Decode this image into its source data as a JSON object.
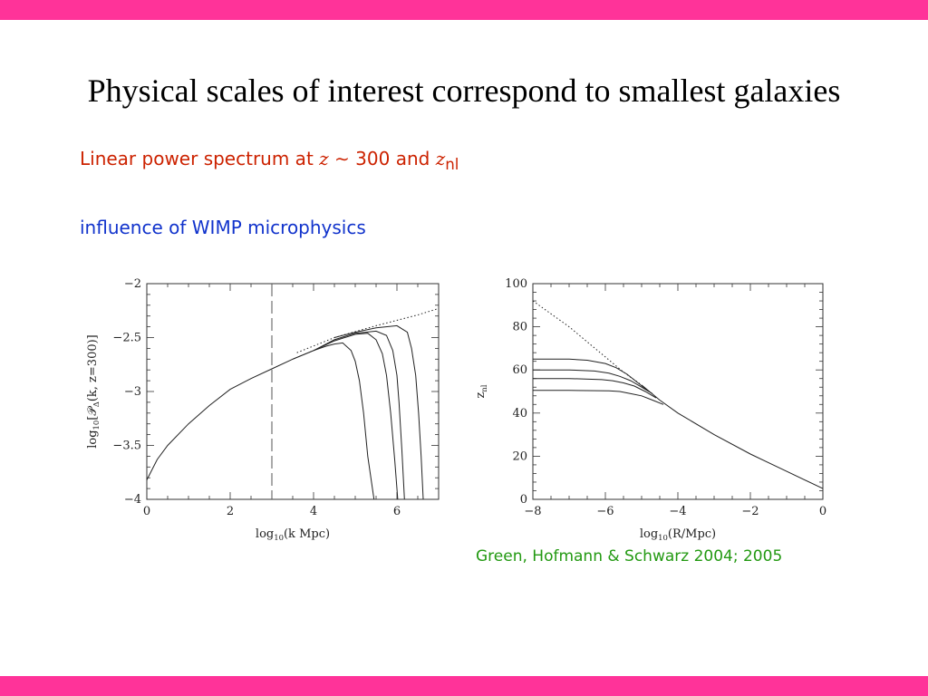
{
  "colors": {
    "accent_bar": "#ff3399",
    "red_text": "#cc2200",
    "blue_text": "#1133cc",
    "green_text": "#229911"
  },
  "slide": {
    "title": "Physical scales of interest correspond to smallest galaxies",
    "subtitle1": {
      "text": "Linear power spectrum at ",
      "z": "z",
      "sim": " ∼ 300 and ",
      "z2": "z",
      "sub": "nl"
    },
    "subtitle2": "influence of WIMP microphysics",
    "citation": "Green, Hofmann & Schwarz 2004; 2005"
  },
  "chart_data": [
    {
      "type": "line",
      "xlabel": {
        "pre": "log",
        "sub": "10",
        "post": "(k Mpc)"
      },
      "ylabel": {
        "pre": "log",
        "sub": "10",
        "mid": "[𝒫",
        "delta": "Δ",
        "post": "(k,  z=300)]"
      },
      "xlim": [
        0,
        7
      ],
      "ylim": [
        -4,
        -2
      ],
      "xticks": [
        0,
        2,
        4,
        6
      ],
      "yticks": [
        -4,
        -3.5,
        -3,
        -2.5,
        -2
      ],
      "xtick_labels": [
        "0",
        "2",
        "4",
        "6"
      ],
      "ytick_labels": [
        "−4",
        "−3.5",
        "−3",
        "−2.5",
        "−2"
      ],
      "vline": 3,
      "series": [
        {
          "style": "dotted",
          "x": [
            3.6,
            4.5,
            5.5,
            6.5,
            7.0
          ],
          "y": [
            -2.64,
            -2.5,
            -2.39,
            -2.29,
            -2.23
          ]
        },
        {
          "style": "solid",
          "x": [
            0,
            0.25,
            0.5,
            1,
            1.5,
            2,
            2.5,
            3,
            3.5,
            4,
            4.3,
            4.5,
            4.7,
            4.9,
            5.0,
            5.1,
            5.2,
            5.3,
            5.45
          ],
          "y": [
            -3.82,
            -3.63,
            -3.5,
            -3.3,
            -3.13,
            -2.98,
            -2.88,
            -2.79,
            -2.7,
            -2.62,
            -2.58,
            -2.56,
            -2.55,
            -2.62,
            -2.72,
            -2.9,
            -3.2,
            -3.6,
            -4.0
          ]
        },
        {
          "style": "solid",
          "x": [
            3.5,
            4,
            4.5,
            5.0,
            5.3,
            5.5,
            5.65,
            5.75,
            5.85,
            5.95,
            6.02
          ],
          "y": [
            -2.7,
            -2.62,
            -2.53,
            -2.47,
            -2.46,
            -2.52,
            -2.65,
            -2.85,
            -3.2,
            -3.65,
            -4.0
          ]
        },
        {
          "style": "solid",
          "x": [
            4,
            4.5,
            5.0,
            5.5,
            5.75,
            5.9,
            6.0,
            6.05,
            6.12,
            6.18
          ],
          "y": [
            -2.62,
            -2.52,
            -2.46,
            -2.44,
            -2.48,
            -2.62,
            -2.85,
            -3.1,
            -3.55,
            -4.0
          ]
        },
        {
          "style": "solid",
          "x": [
            4.5,
            5.0,
            5.5,
            6.0,
            6.25,
            6.35,
            6.45,
            6.52,
            6.58,
            6.63
          ],
          "y": [
            -2.5,
            -2.45,
            -2.41,
            -2.39,
            -2.45,
            -2.6,
            -2.85,
            -3.2,
            -3.6,
            -4.0
          ]
        }
      ]
    },
    {
      "type": "line",
      "xlabel": {
        "pre": "log",
        "sub": "10",
        "post": "(R/Mpc)"
      },
      "ylabel": {
        "pre": "z",
        "sub": "nl",
        "mid": "",
        "delta": "",
        "post": ""
      },
      "xlim": [
        -8,
        0
      ],
      "ylim": [
        0,
        100
      ],
      "xticks": [
        -8,
        -6,
        -4,
        -2,
        0
      ],
      "yticks": [
        0,
        20,
        40,
        60,
        80,
        100
      ],
      "xtick_labels": [
        "−8",
        "−6",
        "−4",
        "−2",
        "0"
      ],
      "ytick_labels": [
        "0",
        "20",
        "40",
        "60",
        "80",
        "100"
      ],
      "series": [
        {
          "style": "dotted",
          "x": [
            -8,
            -7.5,
            -7,
            -6.5,
            -6,
            -5.5,
            -5.0
          ],
          "y": [
            92,
            86,
            80,
            73,
            66,
            59,
            53
          ]
        },
        {
          "style": "solid",
          "x": [
            -5.0,
            -4.5,
            -4,
            -3,
            -2,
            -1,
            0
          ],
          "y": [
            53,
            46,
            40,
            30,
            21,
            13,
            5
          ]
        },
        {
          "style": "solid",
          "x": [
            -8,
            -7,
            -6.5,
            -6.0,
            -5.7,
            -5.4,
            -5.1,
            -4.8
          ],
          "y": [
            65,
            65,
            64.5,
            63,
            61,
            58,
            54,
            50
          ]
        },
        {
          "style": "solid",
          "x": [
            -8,
            -7,
            -6.3,
            -5.9,
            -5.6,
            -5.3,
            -5.0,
            -4.7
          ],
          "y": [
            60,
            60,
            59.5,
            58.5,
            57,
            55,
            52,
            49
          ]
        },
        {
          "style": "solid",
          "x": [
            -8,
            -7,
            -6.1,
            -5.8,
            -5.5,
            -5.2,
            -4.9,
            -4.6
          ],
          "y": [
            56,
            56,
            55.5,
            55,
            54,
            52.5,
            50,
            47
          ]
        },
        {
          "style": "solid",
          "x": [
            -8,
            -7,
            -5.9,
            -5.6,
            -5.3,
            -5.0,
            -4.7,
            -4.4
          ],
          "y": [
            50.5,
            50.5,
            50.3,
            50,
            49,
            48,
            46,
            44
          ]
        }
      ]
    }
  ]
}
